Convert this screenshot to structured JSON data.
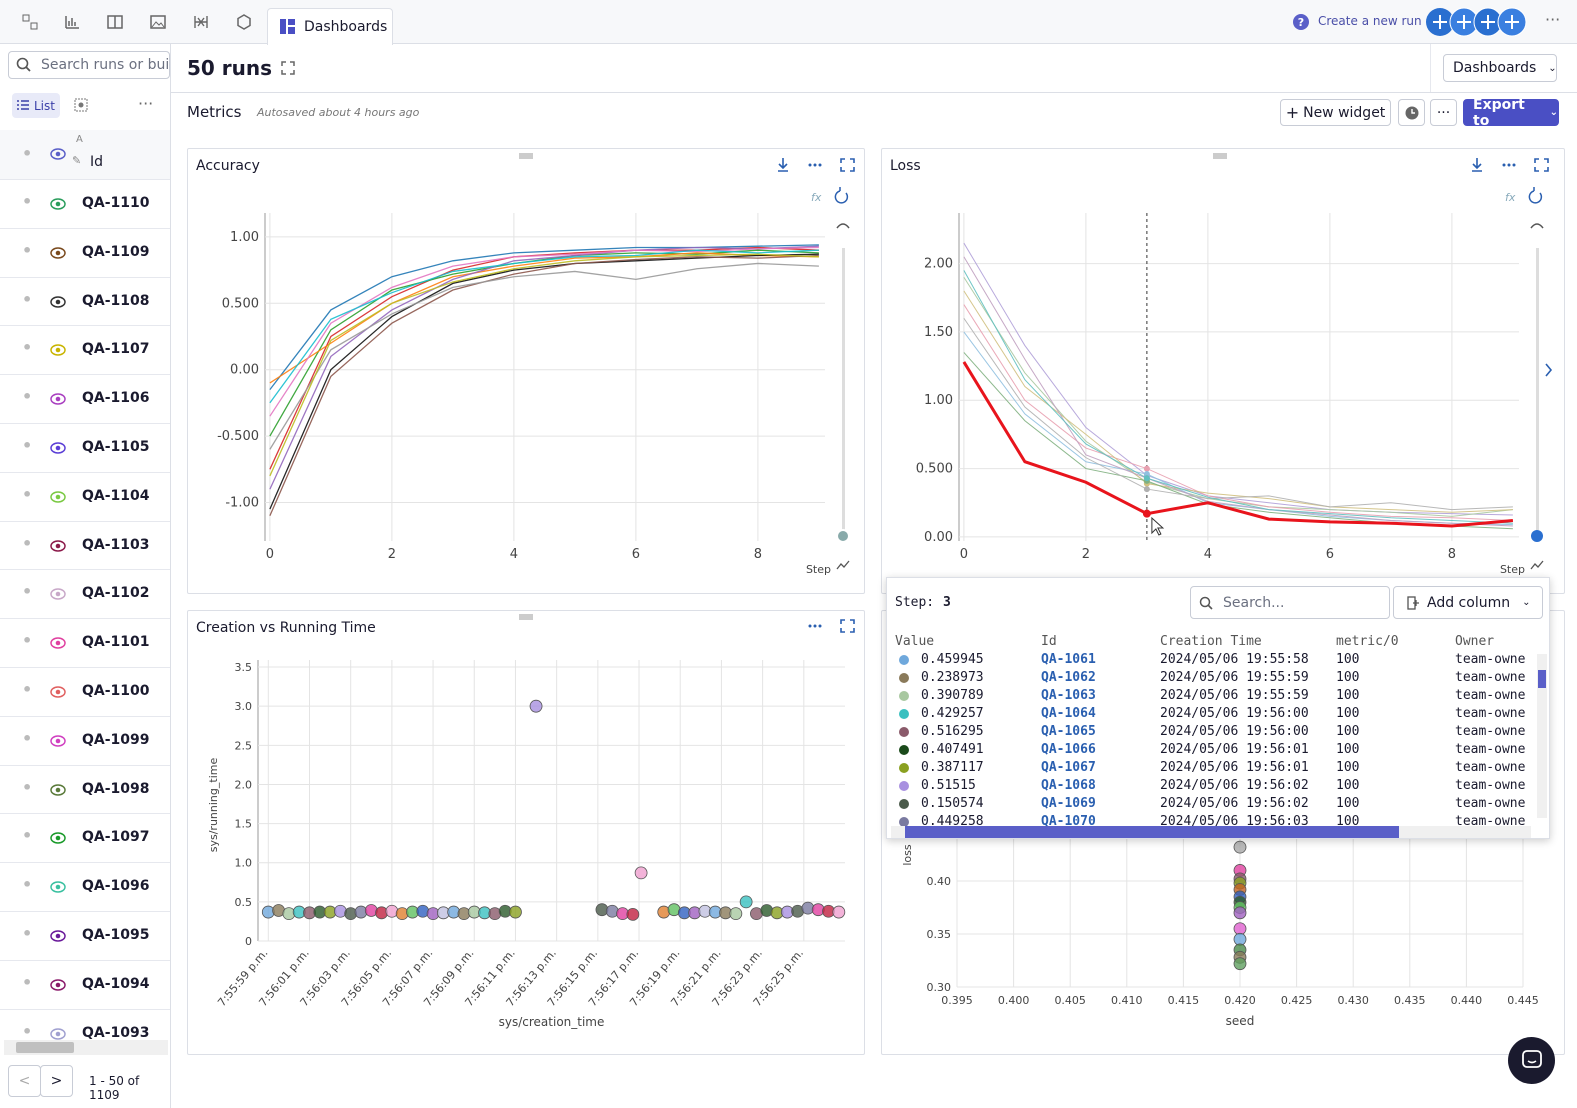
{
  "topbar": {
    "tab": "Dashboards",
    "create_run": "Create a new run"
  },
  "sidebar": {
    "search_placeholder": "Search runs or build",
    "list_tab": "List",
    "sort_marker": "A",
    "id_header": "Id",
    "runs": [
      {
        "id": "QA-1110",
        "color": "#2a9d5c"
      },
      {
        "id": "QA-1109",
        "color": "#7a4a1e"
      },
      {
        "id": "QA-1108",
        "color": "#333333"
      },
      {
        "id": "QA-1107",
        "color": "#c8b400"
      },
      {
        "id": "QA-1106",
        "color": "#a93fc0"
      },
      {
        "id": "QA-1105",
        "color": "#5b3fd6"
      },
      {
        "id": "QA-1104",
        "color": "#7ac943"
      },
      {
        "id": "QA-1103",
        "color": "#8b1a4a"
      },
      {
        "id": "QA-1102",
        "color": "#c8a8c8"
      },
      {
        "id": "QA-1101",
        "color": "#e040a0"
      },
      {
        "id": "QA-1100",
        "color": "#e06060"
      },
      {
        "id": "QA-1099",
        "color": "#d040c0"
      },
      {
        "id": "QA-1098",
        "color": "#5a7a3a"
      },
      {
        "id": "QA-1097",
        "color": "#1a9a2a"
      },
      {
        "id": "QA-1096",
        "color": "#3ac0a0"
      },
      {
        "id": "QA-1095",
        "color": "#6a1a9a"
      },
      {
        "id": "QA-1094",
        "color": "#8a1a6a"
      },
      {
        "id": "QA-1093",
        "color": "#a0a0d0"
      }
    ],
    "pagination": "1 - 50 of 1109"
  },
  "header": {
    "title": "50 runs",
    "dashboards": "Dashboards"
  },
  "metrics": {
    "title": "Metrics",
    "autosave": "Autosaved about 4 hours ago",
    "new_widget": "New widget",
    "export": "Export to"
  },
  "chart_data": [
    {
      "type": "line",
      "title": "Accuracy",
      "xlabel": "Step",
      "xlim": [
        -0.08,
        9.1
      ],
      "xticks": [
        0,
        2,
        4,
        6,
        8
      ],
      "ylim": [
        -1.29,
        1.18
      ],
      "yticks": [
        {
          "value": 1,
          "label": "1.00"
        },
        {
          "value": 0.5,
          "label": "0.500"
        },
        {
          "value": 0,
          "label": "0.00"
        },
        {
          "value": -0.5,
          "label": "-0.500"
        },
        {
          "value": -1,
          "label": "-1.00"
        }
      ],
      "grid": true,
      "x": [
        0,
        1,
        2,
        3,
        4,
        5,
        6,
        7,
        8,
        9
      ],
      "series": [
        {
          "color": "#1f77b4",
          "values": [
            -0.15,
            0.45,
            0.7,
            0.82,
            0.88,
            0.9,
            0.92,
            0.92,
            0.93,
            0.94
          ]
        },
        {
          "color": "#d62728",
          "values": [
            -0.75,
            0.25,
            0.55,
            0.75,
            0.85,
            0.88,
            0.9,
            0.9,
            0.92,
            0.9
          ]
        },
        {
          "color": "#2ca02c",
          "values": [
            -0.5,
            0.3,
            0.6,
            0.72,
            0.8,
            0.86,
            0.88,
            0.87,
            0.9,
            0.88
          ]
        },
        {
          "color": "#ff7f0e",
          "values": [
            -0.1,
            0.2,
            0.5,
            0.7,
            0.78,
            0.84,
            0.85,
            0.88,
            0.86,
            0.85
          ]
        },
        {
          "color": "#9467bd",
          "values": [
            -0.9,
            0.1,
            0.45,
            0.68,
            0.82,
            0.86,
            0.9,
            0.92,
            0.91,
            0.93
          ]
        },
        {
          "color": "#111111",
          "values": [
            -1.05,
            0.0,
            0.4,
            0.65,
            0.75,
            0.8,
            0.82,
            0.84,
            0.86,
            0.87
          ]
        },
        {
          "color": "#e377c2",
          "values": [
            -0.35,
            0.35,
            0.62,
            0.78,
            0.85,
            0.87,
            0.9,
            0.89,
            0.91,
            0.92
          ]
        },
        {
          "color": "#8c564b",
          "values": [
            -1.1,
            -0.05,
            0.35,
            0.6,
            0.72,
            0.8,
            0.83,
            0.85,
            0.84,
            0.86
          ]
        },
        {
          "color": "#999999",
          "values": [
            -0.6,
            0.15,
            0.42,
            0.62,
            0.7,
            0.74,
            0.68,
            0.76,
            0.8,
            0.78
          ]
        },
        {
          "color": "#17becf",
          "values": [
            -0.25,
            0.38,
            0.58,
            0.74,
            0.8,
            0.85,
            0.86,
            0.9,
            0.88,
            0.9
          ]
        },
        {
          "color": "#bcbd22",
          "values": [
            -0.8,
            0.22,
            0.5,
            0.66,
            0.76,
            0.82,
            0.85,
            0.86,
            0.87,
            0.85
          ]
        }
      ]
    },
    {
      "type": "line",
      "title": "Loss",
      "xlabel": "Step",
      "xlim": [
        -0.08,
        9.1
      ],
      "xticks": [
        0,
        2,
        4,
        6,
        8
      ],
      "ylim": [
        -0.03,
        2.37
      ],
      "yticks": [
        {
          "value": 2,
          "label": "2.00"
        },
        {
          "value": 1.5,
          "label": "1.50"
        },
        {
          "value": 1,
          "label": "1.00"
        },
        {
          "value": 0.5,
          "label": "0.500"
        },
        {
          "value": 0,
          "label": "0.00"
        }
      ],
      "grid": true,
      "hover_step": 3,
      "x": [
        0,
        1,
        2,
        3,
        4,
        5,
        6,
        7,
        8,
        9
      ],
      "series": [
        {
          "color": "#b0a0d8",
          "values": [
            2.15,
            1.4,
            0.8,
            0.45,
            0.3,
            0.25,
            0.2,
            0.18,
            0.17,
            0.16
          ]
        },
        {
          "color": "#a8c8a0",
          "values": [
            1.9,
            1.2,
            0.7,
            0.4,
            0.28,
            0.22,
            0.2,
            0.18,
            0.15,
            0.2
          ]
        },
        {
          "color": "#e8a0b0",
          "values": [
            1.7,
            1.0,
            0.65,
            0.5,
            0.3,
            0.22,
            0.18,
            0.15,
            0.14,
            0.12
          ]
        },
        {
          "color": "#90c0e0",
          "values": [
            1.5,
            0.9,
            0.55,
            0.46,
            0.25,
            0.2,
            0.15,
            0.12,
            0.1,
            0.09
          ]
        },
        {
          "color": "#d0c080",
          "values": [
            1.8,
            1.1,
            0.75,
            0.39,
            0.32,
            0.28,
            0.22,
            0.2,
            0.18,
            0.2
          ]
        },
        {
          "color": "#c0a0c0",
          "values": [
            2.05,
            1.3,
            0.6,
            0.43,
            0.26,
            0.2,
            0.16,
            0.12,
            0.1,
            0.08
          ]
        },
        {
          "color": "#80b080",
          "values": [
            1.35,
            0.85,
            0.5,
            0.41,
            0.24,
            0.18,
            0.14,
            0.1,
            0.08,
            0.06
          ]
        },
        {
          "color": "#b0b0b0",
          "values": [
            1.6,
            0.95,
            0.58,
            0.35,
            0.28,
            0.3,
            0.22,
            0.25,
            0.2,
            0.22
          ]
        },
        {
          "color": "#60c0c0",
          "values": [
            1.95,
            1.15,
            0.68,
            0.43,
            0.29,
            0.2,
            0.17,
            0.14,
            0.12,
            0.1
          ]
        },
        {
          "color": "#e8141c",
          "highlight": true,
          "values": [
            1.28,
            0.55,
            0.4,
            0.17,
            0.25,
            0.13,
            0.11,
            0.1,
            0.08,
            0.12
          ]
        }
      ]
    },
    {
      "type": "scatter",
      "title": "Creation vs Running Time",
      "xlabel": "sys/creation_time",
      "ylabel": "sys/running_time",
      "xlim": [
        71758.5,
        71787
      ],
      "xticks": [
        {
          "value": 71759,
          "label": "7:55:59 p.m."
        },
        {
          "value": 71761,
          "label": "7:56:01 p.m."
        },
        {
          "value": 71763,
          "label": "7:56:03 p.m."
        },
        {
          "value": 71765,
          "label": "7:56:05 p.m."
        },
        {
          "value": 71767,
          "label": "7:56:07 p.m."
        },
        {
          "value": 71769,
          "label": "7:56:09 p.m."
        },
        {
          "value": 71771,
          "label": "7:56:11 p.m."
        },
        {
          "value": 71773,
          "label": "7:56:13 p.m."
        },
        {
          "value": 71775,
          "label": "7:56:15 p.m."
        },
        {
          "value": 71777,
          "label": "7:56:17 p.m."
        },
        {
          "value": 71779,
          "label": "7:56:19 p.m."
        },
        {
          "value": 71781,
          "label": "7:56:21 p.m."
        },
        {
          "value": 71783,
          "label": "7:56:23 p.m."
        },
        {
          "value": 71785,
          "label": "7:56:25 p.m."
        }
      ],
      "ylim": [
        0,
        3.59
      ],
      "yticks": [
        {
          "value": 3.5,
          "label": "3.5"
        },
        {
          "value": 3,
          "label": "3.0"
        },
        {
          "value": 2.5,
          "label": "2.5"
        },
        {
          "value": 2,
          "label": "2.0"
        },
        {
          "value": 1.5,
          "label": "1.5"
        },
        {
          "value": 1,
          "label": "1.0"
        },
        {
          "value": 0.5,
          "label": "0.5"
        },
        0
      ],
      "grid": true,
      "palette": [
        "#6fa8dc",
        "#8a7a5a",
        "#a8c8a0",
        "#3ac0c0",
        "#8a5a6a",
        "#2a5a2a",
        "#8aa020",
        "#a890e0",
        "#4a5a4a",
        "#7a7aa0",
        "#e040a0",
        "#c02040",
        "#f0a0d0",
        "#e08030",
        "#60c060",
        "#3060c0",
        "#a060c0",
        "#c0c0e0"
      ],
      "x": [
        71759.0,
        71759.5,
        71760.0,
        71760.5,
        71761.0,
        71761.5,
        71762.0,
        71762.5,
        71763.0,
        71763.5,
        71764.0,
        71764.5,
        71765.0,
        71765.5,
        71766.0,
        71766.5,
        71767.0,
        71767.5,
        71768.0,
        71768.5,
        71769.0,
        71769.5,
        71770.0,
        71770.5,
        71771.0,
        71772.0,
        71775.2,
        71775.7,
        71776.2,
        71776.7,
        71777.1,
        71778.2,
        71778.7,
        71779.2,
        71779.7,
        71780.2,
        71780.7,
        71781.2,
        71781.7,
        71782.2,
        71782.7,
        71783.2,
        71783.7,
        71784.2,
        71784.7,
        71785.2,
        71785.7,
        71786.2,
        71786.7
      ],
      "values": [
        0.37,
        0.39,
        0.35,
        0.37,
        0.36,
        0.37,
        0.37,
        0.38,
        0.35,
        0.37,
        0.39,
        0.36,
        0.38,
        0.35,
        0.37,
        0.38,
        0.35,
        0.36,
        0.37,
        0.35,
        0.37,
        0.36,
        0.35,
        0.38,
        0.37,
        3.0,
        0.4,
        0.38,
        0.35,
        0.34,
        0.87,
        0.37,
        0.4,
        0.36,
        0.36,
        0.38,
        0.37,
        0.36,
        0.35,
        0.5,
        0.35,
        0.39,
        0.36,
        0.37,
        0.38,
        0.42,
        0.4,
        0.38,
        0.37
      ]
    },
    {
      "type": "scatter",
      "xlabel": "seed",
      "ylabel": "loss",
      "xlim": [
        0.395,
        0.445
      ],
      "xticks": [
        0.395,
        {
          "value": 0.4,
          "label": "0.400"
        },
        0.405,
        {
          "value": 0.41,
          "label": "0.410"
        },
        0.415,
        {
          "value": 0.42,
          "label": "0.420"
        },
        0.425,
        {
          "value": 0.43,
          "label": "0.430"
        },
        0.435,
        {
          "value": 0.44,
          "label": "0.440"
        },
        0.445
      ],
      "ylim": [
        0.3,
        0.618
      ],
      "yticks": [
        {
          "value": 0.4,
          "label": "0.40"
        },
        0.35,
        {
          "value": 0.3,
          "label": "0.30"
        }
      ],
      "grid": true,
      "palette": [
        "#a8a8a8",
        "#e040a0",
        "#8a5a6a",
        "#8aa020",
        "#c06020",
        "#3060c0",
        "#2a5a2a",
        "#60c060",
        "#a060c0",
        "#e060d0",
        "#6fa8dc",
        "#4a8a4a",
        "#8a7a5a",
        "#60a060"
      ],
      "x": [
        0.42,
        0.42,
        0.42,
        0.42,
        0.42,
        0.42,
        0.42,
        0.42,
        0.42,
        0.42,
        0.42,
        0.42,
        0.42,
        0.42
      ],
      "values": [
        0.432,
        0.41,
        0.402,
        0.398,
        0.392,
        0.385,
        0.38,
        0.375,
        0.37,
        0.355,
        0.345,
        0.335,
        0.328,
        0.322
      ]
    }
  ],
  "tooltip": {
    "step_label": "Step:",
    "step": 3,
    "search_placeholder": "Search...",
    "add_column": "Add column",
    "columns": [
      "Value",
      "Id",
      "Creation Time",
      "metric/0",
      "Owner"
    ],
    "rows": [
      {
        "color": "#6fa8dc",
        "cells": [
          0.459945,
          "QA-1061",
          "2024/05/06 19:55:58",
          100,
          "team-owne"
        ]
      },
      {
        "color": "#8a7a5a",
        "cells": [
          0.238973,
          "QA-1062",
          "2024/05/06 19:55:59",
          100,
          "team-owne"
        ]
      },
      {
        "color": "#a8c8a0",
        "cells": [
          0.390789,
          "QA-1063",
          "2024/05/06 19:55:59",
          100,
          "team-owne"
        ]
      },
      {
        "color": "#3ac0c0",
        "cells": [
          0.429257,
          "QA-1064",
          "2024/05/06 19:56:00",
          100,
          "team-owne"
        ]
      },
      {
        "color": "#8a5a6a",
        "cells": [
          0.516295,
          "QA-1065",
          "2024/05/06 19:56:00",
          100,
          "team-owne"
        ]
      },
      {
        "color": "#1a4a1a",
        "cells": [
          0.407491,
          "QA-1066",
          "2024/05/06 19:56:01",
          100,
          "team-owne"
        ]
      },
      {
        "color": "#8aa020",
        "cells": [
          0.387117,
          "QA-1067",
          "2024/05/06 19:56:01",
          100,
          "team-owne"
        ]
      },
      {
        "color": "#a890e0",
        "cells": [
          0.51515,
          "QA-1068",
          "2024/05/06 19:56:02",
          100,
          "team-owne"
        ]
      },
      {
        "color": "#4a5a4a",
        "cells": [
          0.150574,
          "QA-1069",
          "2024/05/06 19:56:02",
          100,
          "team-owne"
        ]
      },
      {
        "color": "#7a7aa0",
        "cells": [
          0.449258,
          "QA-1070",
          "2024/05/06 19:56:03",
          100,
          "team-owne"
        ]
      }
    ]
  }
}
